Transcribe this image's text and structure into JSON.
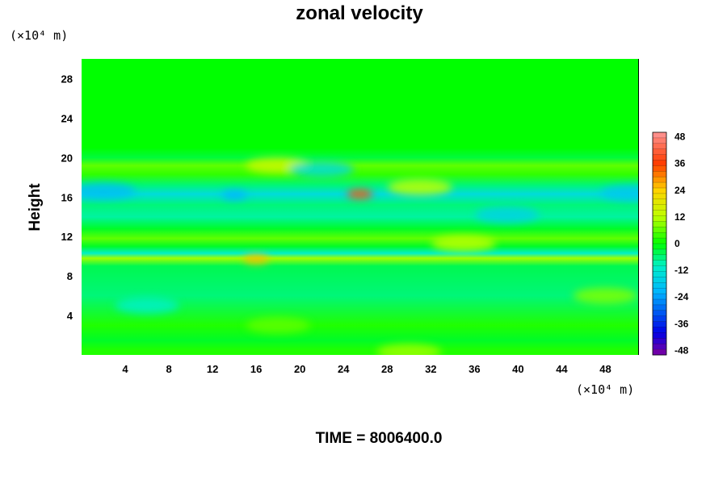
{
  "chart_data": {
    "type": "heatmap",
    "title": "zonal velocity",
    "xlabel": "",
    "ylabel": "Height",
    "x_unit": "(×10⁴ m)",
    "y_unit": "(×10⁴ m)",
    "xlim": [
      0,
      51
    ],
    "ylim": [
      0,
      30
    ],
    "x_ticks": [
      4,
      8,
      12,
      16,
      20,
      24,
      28,
      32,
      36,
      40,
      44,
      48
    ],
    "y_ticks": [
      4,
      8,
      12,
      16,
      20,
      24,
      28
    ],
    "colorbar": {
      "ticks": [
        48,
        36,
        24,
        12,
        0,
        -12,
        -24,
        -36,
        -48
      ],
      "range": [
        -50,
        50
      ],
      "levels": 40
    },
    "footer": "TIME = 8006400.0",
    "field_bands": [
      {
        "y": 29,
        "u": 0
      },
      {
        "y": 24,
        "u": 0
      },
      {
        "y": 21,
        "u": 0
      },
      {
        "y": 20,
        "u": -3
      },
      {
        "y": 19.2,
        "u": 6
      },
      {
        "y": 18.3,
        "u": 3
      },
      {
        "y": 17.2,
        "u": -6
      },
      {
        "y": 16.3,
        "u": -14
      },
      {
        "y": 15.2,
        "u": -6
      },
      {
        "y": 14,
        "u": -8
      },
      {
        "y": 12.8,
        "u": -2
      },
      {
        "y": 11.8,
        "u": 6
      },
      {
        "y": 11,
        "u": -2
      },
      {
        "y": 10.3,
        "u": -10
      },
      {
        "y": 9.8,
        "u": 10
      },
      {
        "y": 9,
        "u": -4
      },
      {
        "y": 6,
        "u": -6
      },
      {
        "y": 3,
        "u": 2
      },
      {
        "y": 1.5,
        "u": -2
      },
      {
        "y": 0.5,
        "u": 2
      }
    ],
    "features": [
      {
        "x": 25.5,
        "y": 16.3,
        "u": 34
      },
      {
        "x": 16,
        "y": 9.7,
        "u": 26
      },
      {
        "x": 18,
        "y": 19.2,
        "u": 14
      },
      {
        "x": 31,
        "y": 17,
        "u": 12
      },
      {
        "x": 35,
        "y": 11.3,
        "u": 12
      },
      {
        "x": 14,
        "y": 16.2,
        "u": -22
      },
      {
        "x": 2,
        "y": 16.6,
        "u": -20
      },
      {
        "x": 50.5,
        "y": 16.4,
        "u": -18
      },
      {
        "x": 39,
        "y": 14.2,
        "u": -16
      },
      {
        "x": 22,
        "y": 18.8,
        "u": -14
      },
      {
        "x": 30,
        "y": 0.3,
        "u": 10
      },
      {
        "x": 48,
        "y": 6,
        "u": 8
      },
      {
        "x": 18,
        "y": 3,
        "u": 6
      },
      {
        "x": 6,
        "y": 5,
        "u": -10
      }
    ]
  }
}
